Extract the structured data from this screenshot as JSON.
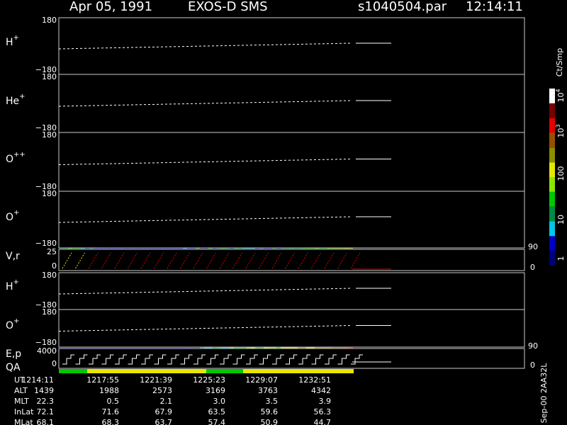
{
  "header": {
    "date": "Apr 05, 1991",
    "instrument": "EXOS-D SMS",
    "file": "s1040504.par",
    "time": "12:14:11"
  },
  "panels": [
    {
      "label": "H",
      "sup": "+",
      "top": "180",
      "bottom": "−180"
    },
    {
      "label": "He",
      "sup": "+",
      "top": "180",
      "bottom": "−180"
    },
    {
      "label": "O",
      "sup": "++",
      "top": "180",
      "bottom": "−180"
    },
    {
      "label": "O",
      "sup": "+",
      "top": "180",
      "bottom": "−180"
    },
    {
      "label": "V,r",
      "top": "25",
      "bottom": "0",
      "right_top": "90",
      "right_bottom": "0"
    },
    {
      "label": "H",
      "sup": "+",
      "top": "180",
      "bottom": "−180"
    },
    {
      "label": "O",
      "sup": "+",
      "top": "180",
      "bottom": "−180"
    },
    {
      "label": "E,p",
      "top": "4000",
      "bottom": "0",
      "right_top": "90",
      "right_bottom": "0"
    }
  ],
  "qa_label": "QA",
  "colorbar": {
    "unit": "Ct/Smp",
    "labels": [
      {
        "base": "1"
      },
      {
        "base": "10"
      },
      {
        "base": "100"
      },
      {
        "base": "10",
        "sup": "3"
      },
      {
        "base": "10",
        "sup": "4"
      }
    ],
    "colors": [
      "#00007a",
      "#0000c8",
      "#00c8e6",
      "#008c46",
      "#00c800",
      "#8ce600",
      "#e6e600",
      "#8c8c00",
      "#965000",
      "#e60000",
      "#780000",
      "#ffffff"
    ]
  },
  "table": {
    "rows": [
      {
        "name": "UT",
        "values": [
          "1214:11",
          "1217:55",
          "1221:39",
          "1225:23",
          "1229:07",
          "1232:51"
        ]
      },
      {
        "name": "ALT",
        "values": [
          "1439",
          "1988",
          "2573",
          "3169",
          "3763",
          "4342"
        ]
      },
      {
        "name": "MLT",
        "values": [
          "22.3",
          "0.5",
          "2.1",
          "3.0",
          "3.5",
          "3.9"
        ]
      },
      {
        "name": "InLat",
        "values": [
          "72.1",
          "71.6",
          "67.9",
          "63.5",
          "59.6",
          "56.3"
        ]
      },
      {
        "name": "MLat",
        "values": [
          "68.1",
          "68.3",
          "63.7",
          "57.4",
          "50.9",
          "44.7"
        ]
      }
    ]
  },
  "footer": "Sep-00 2AA32L"
}
